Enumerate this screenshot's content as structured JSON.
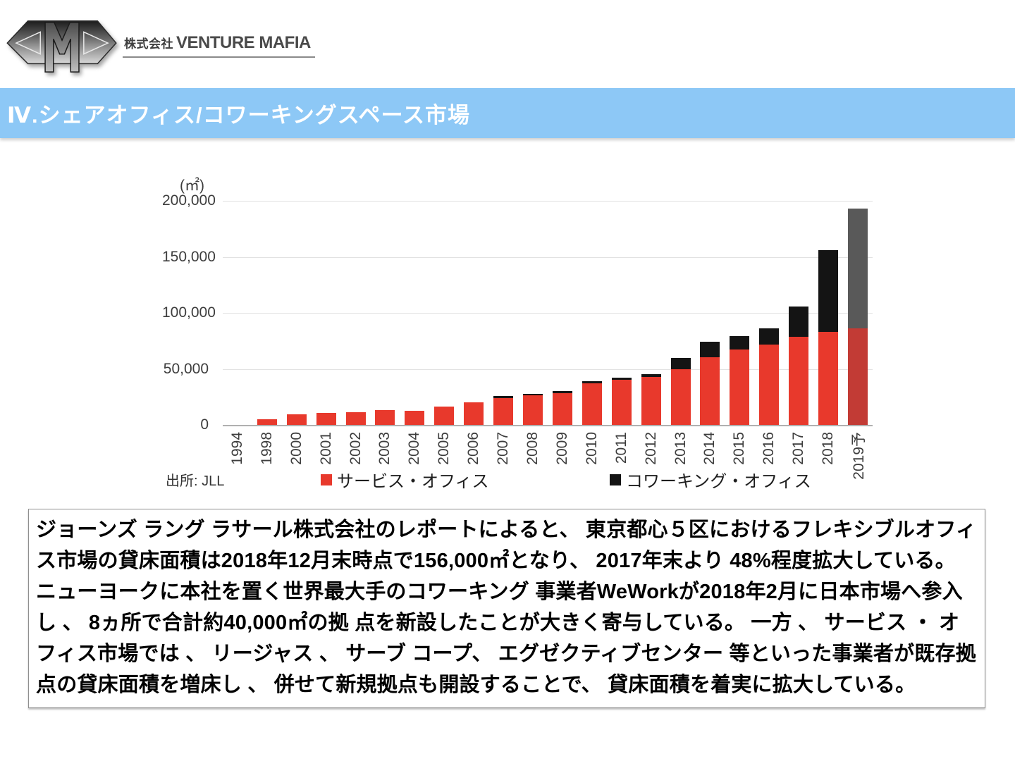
{
  "logo": {
    "prefix": "株式会社",
    "name": "VENTURE MAFIA"
  },
  "header": {
    "title": "Ⅳ.シェアオフィス/コワーキングスペース市場",
    "bg_color": "#8DC8F6",
    "text_color": "#FFFFFF"
  },
  "chart": {
    "unit_label": "(㎡)",
    "source": "出所: JLL",
    "legend": [
      {
        "label": "サービス・オフィス",
        "color": "#E8392C"
      },
      {
        "label": "コワーキング・オフィス",
        "color": "#141414"
      }
    ]
  },
  "chart_data": {
    "type": "bar",
    "stacked": true,
    "title": "",
    "xlabel": "",
    "ylabel": "(㎡)",
    "ylim": [
      0,
      200000
    ],
    "ytick_labels": [
      "0",
      "50,000",
      "100,000",
      "150,000",
      "200,000"
    ],
    "grid": "horizontal",
    "legend_position": "bottom",
    "categories": [
      "1994",
      "1998",
      "2000",
      "2001",
      "2002",
      "2003",
      "2004",
      "2005",
      "2006",
      "2007",
      "2008",
      "2009",
      "2010",
      "2011",
      "2012",
      "2013",
      "2014",
      "2015",
      "2016",
      "2017",
      "2018",
      "2019予"
    ],
    "series": [
      {
        "name": "サービス・オフィス",
        "color": "#E8392C",
        "values": [
          0,
          5000,
          9500,
          11000,
          11500,
          13000,
          12500,
          16500,
          20000,
          24000,
          26500,
          28500,
          37000,
          40000,
          43000,
          50000,
          60500,
          67000,
          72000,
          78500,
          83000,
          86000
        ]
      },
      {
        "name": "コワーキング・オフィス",
        "color": "#141414",
        "values": [
          0,
          0,
          0,
          0,
          0,
          0,
          0,
          0,
          0,
          1500,
          1500,
          2000,
          2000,
          2000,
          2000,
          9500,
          14000,
          12500,
          14000,
          27000,
          73000,
          107000
        ]
      }
    ],
    "forecast_category": "2019予",
    "forecast_colors": [
      "#C23B35",
      "#595959"
    ],
    "baseline_color": "#B0B0B0",
    "gridline_color": "#E2E2E2"
  },
  "footnote": {
    "text": "ジョーンズ ラング ラサール株式会社のレポートによると、 東京都心５区におけるフレキシブルオフィス市場の貸床面積は2018年12月末時点で156,000㎡となり、 2017年末より 48%程度拡大している。 ニューヨークに本社を置く世界最大手のコワーキング 事業者WeWorkが2018年2月に日本市場へ参入し 、 8ヵ所で合計約40,000㎡の拠 点を新設したことが大きく寄与している。 一方 、 サービス ・ オフィス市場では 、 リージャス 、 サーブ コープ、 エグゼクティブセンター 等といった事業者が既存拠点の貸床面積を増床し 、 併せて新規拠点も開設することで、 貸床面積を着実に拡大している。"
  }
}
